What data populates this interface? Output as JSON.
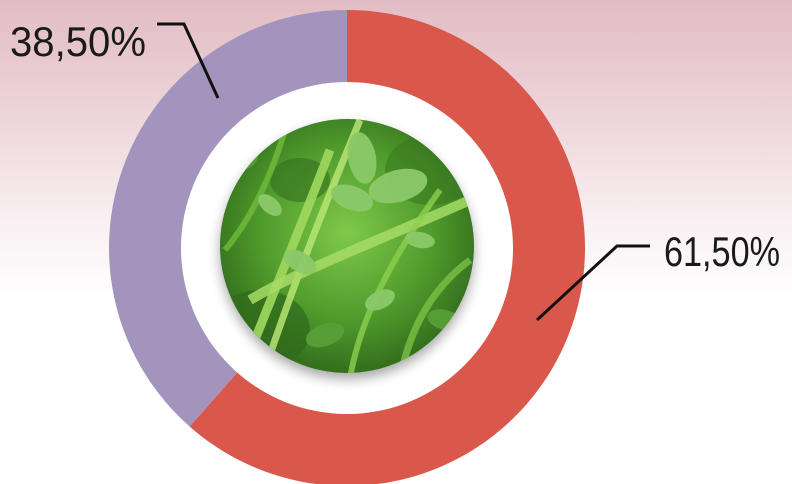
{
  "chart_data": {
    "type": "pie",
    "categories": [
      "",
      ""
    ],
    "values": [
      61.5,
      38.5
    ],
    "slice_labels": [
      "61,50%",
      "38,50%"
    ],
    "colors": [
      "#d9584b",
      "#a394bd"
    ],
    "title": "",
    "center_image": "clover-and-grass-photo"
  }
}
